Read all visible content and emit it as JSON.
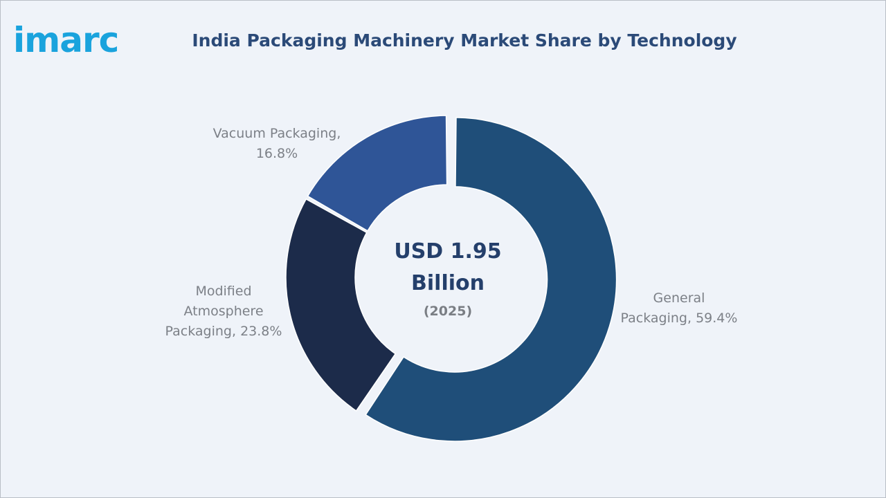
{
  "brand": {
    "logo_text": "imarc"
  },
  "chart_data": {
    "type": "pie",
    "title": "India Packaging Machinery Market Share by Technology",
    "center_value": "USD 1.95 Billion",
    "center_value_line1": "USD 1.95",
    "center_value_line2": "Billion",
    "center_year": "(2025)",
    "categories": [
      "General Packaging",
      "Modified Atmosphere Packaging",
      "Vacuum Packaging"
    ],
    "values": [
      59.4,
      23.8,
      16.8
    ],
    "unit": "%",
    "labels": [
      {
        "lines": [
          "General",
          "Packaging, 59.4%"
        ]
      },
      {
        "lines": [
          "Modified",
          "Atmosphere",
          "Packaging, 23.8%"
        ]
      },
      {
        "lines": [
          "Vacuum Packaging,",
          "16.8%"
        ]
      }
    ],
    "colors": [
      "#1f4e79",
      "#1c2b4a",
      "#2f5597"
    ],
    "exploded": [
      "General Packaging"
    ],
    "legend": "none"
  }
}
